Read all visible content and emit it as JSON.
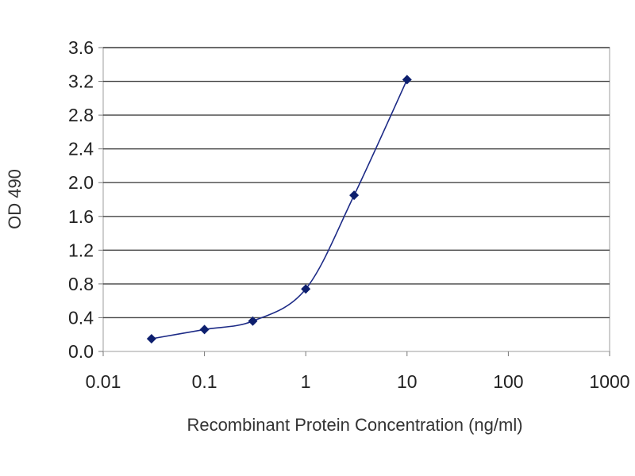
{
  "chart_data": {
    "type": "line",
    "xlabel": "Recombinant Protein Concentration (ng/ml)",
    "ylabel": "OD 490",
    "x_scale": "log",
    "xlim": [
      0.01,
      1000
    ],
    "ylim": [
      0,
      3.6
    ],
    "x_ticks": [
      "0.01",
      "0.1",
      "1",
      "10",
      "100",
      "1000"
    ],
    "y_ticks": [
      "0.0",
      "0.4",
      "0.8",
      "1.2",
      "1.6",
      "2.0",
      "2.4",
      "2.8",
      "3.2",
      "3.6"
    ],
    "grid": "horizontal",
    "legend": "none",
    "series": [
      {
        "x": [
          0.03,
          0.1,
          0.3,
          1,
          3,
          10
        ],
        "y": [
          0.15,
          0.26,
          0.36,
          0.74,
          1.85,
          3.22
        ]
      }
    ],
    "colors": {
      "line": "#1c2a86",
      "marker": "#0d1f6e",
      "grid": "#444444",
      "plot_background": "#ffffff"
    }
  }
}
